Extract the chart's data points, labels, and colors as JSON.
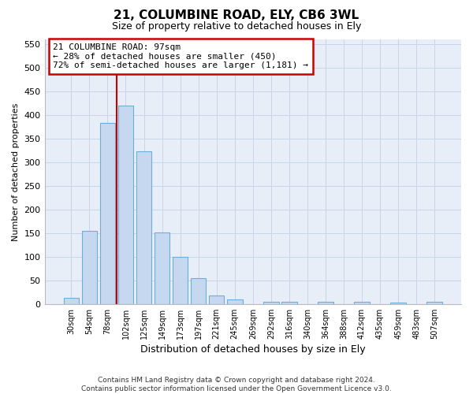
{
  "title1": "21, COLUMBINE ROAD, ELY, CB6 3WL",
  "title2": "Size of property relative to detached houses in Ely",
  "xlabel": "Distribution of detached houses by size in Ely",
  "ylabel": "Number of detached properties",
  "categories": [
    "30sqm",
    "54sqm",
    "78sqm",
    "102sqm",
    "125sqm",
    "149sqm",
    "173sqm",
    "197sqm",
    "221sqm",
    "245sqm",
    "269sqm",
    "292sqm",
    "316sqm",
    "340sqm",
    "364sqm",
    "388sqm",
    "412sqm",
    "435sqm",
    "459sqm",
    "483sqm",
    "507sqm"
  ],
  "values": [
    13,
    155,
    383,
    420,
    323,
    152,
    100,
    55,
    18,
    10,
    0,
    5,
    4,
    0,
    4,
    0,
    4,
    0,
    3,
    0,
    4
  ],
  "bar_color": "#c5d8f0",
  "bar_edge_color": "#6baed6",
  "bar_width": 0.85,
  "ylim": [
    0,
    560
  ],
  "yticks": [
    0,
    50,
    100,
    150,
    200,
    250,
    300,
    350,
    400,
    450,
    500,
    550
  ],
  "grid_color": "#c8d4e8",
  "annotation_line1": "21 COLUMBINE ROAD: 97sqm",
  "annotation_line2": "← 28% of detached houses are smaller (450)",
  "annotation_line3": "72% of semi-detached houses are larger (1,181) →",
  "annotation_box_color": "#ffffff",
  "annotation_box_edge": "#cc0000",
  "red_line_color": "#cc0000",
  "footnote1": "Contains HM Land Registry data © Crown copyright and database right 2024.",
  "footnote2": "Contains public sector information licensed under the Open Government Licence v3.0.",
  "bg_color": "#ffffff",
  "plot_bg_color": "#e8eef8"
}
